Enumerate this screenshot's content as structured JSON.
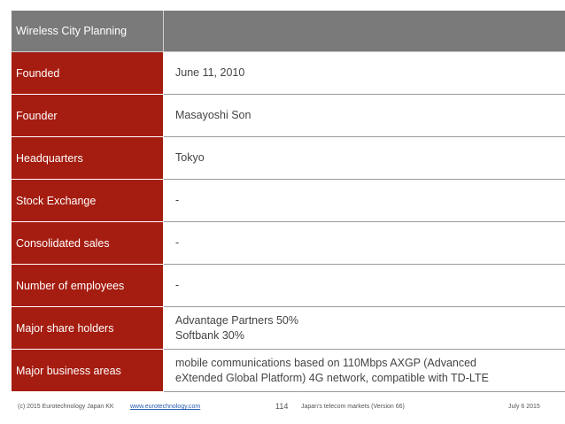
{
  "table": {
    "header": "Wireless City Planning",
    "rows": [
      {
        "label": "Founded",
        "value": "June 11, 2010"
      },
      {
        "label": "Founder",
        "value": "Masayoshi Son"
      },
      {
        "label": "Headquarters",
        "value": "Tokyo"
      },
      {
        "label": "Stock Exchange",
        "value": "-"
      },
      {
        "label": "Consolidated sales",
        "value": "-"
      },
      {
        "label": "Number of employees",
        "value": "-"
      },
      {
        "label": "Major share holders",
        "value_lines": [
          "Advantage Partners 50%",
          "Softbank 30%"
        ]
      },
      {
        "label": "Major business areas",
        "value_lines": [
          "mobile communications based on 110Mbps AXGP (Advanced",
          "eXtended Global Platform) 4G network, compatible with TD-LTE"
        ]
      }
    ]
  },
  "footer": {
    "copyright": "(c) 2015 Eurotechnology Japan KK",
    "link": "www.eurotechnology.com",
    "page": "114",
    "title": "Japan's telecom markets (Version 66)",
    "date": "July 6 2015"
  },
  "colors": {
    "label_bg": "#a51c10",
    "header_bg": "#7a7a7a"
  }
}
